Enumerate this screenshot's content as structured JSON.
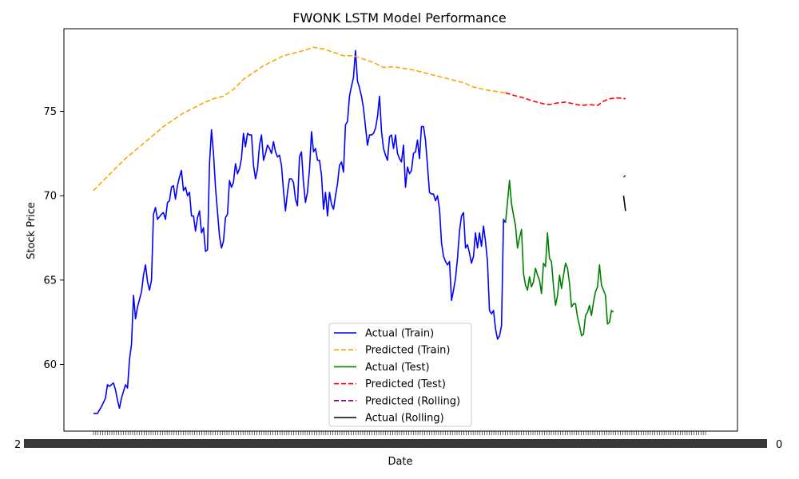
{
  "chart_data": {
    "type": "line",
    "title": "FWONK LSTM Model Performance",
    "xlabel": "Date",
    "ylabel": "Stock Price",
    "ylim": [
      56.5,
      79.7
    ],
    "y_ticks": [
      60,
      65,
      70,
      75
    ],
    "grid": false,
    "legend_position": "lower-center",
    "x_tick_note": "Dense overlapping date tick labels (illegible), starting with '2' and ending with '0'",
    "x_tick_label_start": "2",
    "x_tick_label_end": "0",
    "x_range": [
      0,
      306
    ],
    "series": [
      {
        "name": "Actual (Train)",
        "color": "#0000ff",
        "style": "solid",
        "points": [
          [
            0,
            57.1
          ],
          [
            2,
            57.1
          ],
          [
            4,
            57.5
          ],
          [
            6,
            58.0
          ],
          [
            7,
            58.8
          ],
          [
            8,
            58.7
          ],
          [
            10,
            58.9
          ],
          [
            11,
            58.5
          ],
          [
            12,
            57.9
          ],
          [
            13,
            57.4
          ],
          [
            14,
            58.0
          ],
          [
            16,
            58.8
          ],
          [
            17,
            58.6
          ],
          [
            18,
            60.3
          ],
          [
            19,
            61.2
          ],
          [
            20,
            64.1
          ],
          [
            21,
            62.7
          ],
          [
            22,
            63.4
          ],
          [
            24,
            64.3
          ],
          [
            25,
            65.3
          ],
          [
            26,
            65.9
          ],
          [
            27,
            64.9
          ],
          [
            28,
            64.4
          ],
          [
            29,
            65.0
          ],
          [
            30,
            68.9
          ],
          [
            31,
            69.3
          ],
          [
            32,
            68.6
          ],
          [
            34,
            68.9
          ],
          [
            35,
            69.0
          ],
          [
            36,
            68.6
          ],
          [
            37,
            69.6
          ],
          [
            38,
            69.7
          ],
          [
            39,
            70.5
          ],
          [
            40,
            70.6
          ],
          [
            41,
            69.8
          ],
          [
            42,
            70.6
          ],
          [
            43,
            71.1
          ],
          [
            44,
            71.5
          ],
          [
            45,
            70.3
          ],
          [
            46,
            70.5
          ],
          [
            47,
            70.0
          ],
          [
            48,
            70.2
          ],
          [
            49,
            68.8
          ],
          [
            50,
            68.8
          ],
          [
            51,
            67.9
          ],
          [
            52,
            68.7
          ],
          [
            53,
            69.1
          ],
          [
            54,
            67.8
          ],
          [
            55,
            68.1
          ],
          [
            56,
            66.7
          ],
          [
            57,
            66.8
          ],
          [
            58,
            71.9
          ],
          [
            59,
            73.9
          ],
          [
            60,
            72.5
          ],
          [
            61,
            70.5
          ],
          [
            63,
            67.6
          ],
          [
            64,
            66.9
          ],
          [
            65,
            67.3
          ],
          [
            66,
            68.7
          ],
          [
            67,
            68.9
          ],
          [
            68,
            70.9
          ],
          [
            69,
            70.5
          ],
          [
            70,
            70.8
          ],
          [
            71,
            71.9
          ],
          [
            72,
            71.3
          ],
          [
            73,
            71.6
          ],
          [
            74,
            72.2
          ],
          [
            75,
            73.7
          ],
          [
            76,
            72.9
          ],
          [
            77,
            73.7
          ],
          [
            78,
            73.6
          ],
          [
            79,
            73.6
          ],
          [
            80,
            71.8
          ],
          [
            81,
            71.0
          ],
          [
            82,
            71.6
          ],
          [
            83,
            73.0
          ],
          [
            84,
            73.6
          ],
          [
            85,
            72.1
          ],
          [
            86,
            72.5
          ],
          [
            87,
            73.0
          ],
          [
            88,
            72.8
          ],
          [
            89,
            72.5
          ],
          [
            90,
            73.2
          ],
          [
            91,
            72.6
          ],
          [
            92,
            72.3
          ],
          [
            93,
            72.4
          ],
          [
            94,
            71.8
          ],
          [
            95,
            70.3
          ],
          [
            96,
            69.1
          ],
          [
            97,
            70.2
          ],
          [
            98,
            71.0
          ],
          [
            99,
            71.0
          ],
          [
            100,
            70.8
          ],
          [
            101,
            69.8
          ],
          [
            102,
            69.4
          ],
          [
            103,
            72.3
          ],
          [
            104,
            72.6
          ],
          [
            105,
            70.8
          ],
          [
            106,
            69.6
          ],
          [
            107,
            70.2
          ],
          [
            108,
            71.6
          ],
          [
            109,
            73.8
          ],
          [
            110,
            72.6
          ],
          [
            111,
            72.8
          ],
          [
            112,
            72.1
          ],
          [
            113,
            72.1
          ],
          [
            114,
            71.2
          ],
          [
            115,
            69.2
          ],
          [
            116,
            70.2
          ],
          [
            117,
            68.8
          ],
          [
            118,
            70.2
          ],
          [
            119,
            69.5
          ],
          [
            120,
            69.2
          ],
          [
            121,
            70.0
          ],
          [
            122,
            70.7
          ],
          [
            123,
            71.8
          ],
          [
            124,
            72.0
          ],
          [
            125,
            71.4
          ],
          [
            126,
            74.2
          ],
          [
            127,
            74.4
          ],
          [
            128,
            75.9
          ],
          [
            129,
            76.5
          ],
          [
            130,
            77.0
          ],
          [
            131,
            78.6
          ],
          [
            132,
            76.8
          ],
          [
            133,
            76.4
          ],
          [
            134,
            75.9
          ],
          [
            135,
            75.2
          ],
          [
            136,
            74.1
          ],
          [
            137,
            73.0
          ],
          [
            138,
            73.6
          ],
          [
            139,
            73.6
          ],
          [
            140,
            73.7
          ],
          [
            141,
            74.0
          ],
          [
            142,
            74.7
          ],
          [
            143,
            75.9
          ],
          [
            144,
            73.8
          ],
          [
            145,
            72.8
          ],
          [
            146,
            72.4
          ],
          [
            147,
            72.1
          ],
          [
            148,
            73.5
          ],
          [
            149,
            73.6
          ],
          [
            150,
            72.8
          ],
          [
            151,
            73.6
          ],
          [
            152,
            72.5
          ],
          [
            153,
            72.2
          ],
          [
            154,
            72.0
          ],
          [
            155,
            73.0
          ],
          [
            156,
            70.5
          ],
          [
            157,
            71.7
          ],
          [
            158,
            71.3
          ],
          [
            159,
            71.5
          ],
          [
            160,
            72.5
          ],
          [
            161,
            72.6
          ],
          [
            162,
            73.3
          ],
          [
            163,
            72.2
          ],
          [
            164,
            74.1
          ],
          [
            165,
            74.1
          ],
          [
            166,
            73.3
          ],
          [
            167,
            71.8
          ],
          [
            168,
            70.2
          ],
          [
            169,
            70.1
          ],
          [
            170,
            70.1
          ],
          [
            171,
            69.7
          ],
          [
            172,
            70.0
          ],
          [
            173,
            69.2
          ],
          [
            174,
            67.2
          ],
          [
            175,
            66.4
          ],
          [
            176,
            66.1
          ],
          [
            177,
            65.9
          ],
          [
            178,
            66.1
          ],
          [
            179,
            63.8
          ],
          [
            180,
            64.4
          ],
          [
            181,
            65.1
          ],
          [
            182,
            66.3
          ],
          [
            183,
            67.9
          ],
          [
            184,
            68.8
          ],
          [
            185,
            69.0
          ],
          [
            186,
            66.9
          ],
          [
            187,
            67.1
          ],
          [
            188,
            66.6
          ],
          [
            189,
            66.0
          ],
          [
            190,
            66.4
          ],
          [
            191,
            67.8
          ],
          [
            192,
            66.9
          ],
          [
            193,
            67.8
          ],
          [
            194,
            67.0
          ],
          [
            195,
            68.2
          ],
          [
            196,
            67.3
          ],
          [
            197,
            66.1
          ],
          [
            198,
            63.2
          ],
          [
            199,
            63.0
          ],
          [
            200,
            63.2
          ],
          [
            201,
            62.1
          ],
          [
            202,
            61.5
          ],
          [
            203,
            61.7
          ],
          [
            204,
            62.3
          ],
          [
            205,
            68.6
          ],
          [
            206,
            68.4
          ]
        ]
      },
      {
        "name": "Predicted (Train)",
        "color": "#ffa500",
        "style": "dashed",
        "points": [
          [
            0,
            70.3
          ],
          [
            5,
            70.9
          ],
          [
            10,
            71.5
          ],
          [
            15,
            72.1
          ],
          [
            20,
            72.6
          ],
          [
            25,
            73.1
          ],
          [
            30,
            73.6
          ],
          [
            35,
            74.1
          ],
          [
            40,
            74.5
          ],
          [
            45,
            74.9
          ],
          [
            50,
            75.2
          ],
          [
            55,
            75.5
          ],
          [
            60,
            75.75
          ],
          [
            65,
            75.9
          ],
          [
            70,
            76.3
          ],
          [
            75,
            76.9
          ],
          [
            80,
            77.3
          ],
          [
            85,
            77.7
          ],
          [
            90,
            78.0
          ],
          [
            95,
            78.3
          ],
          [
            100,
            78.45
          ],
          [
            105,
            78.6
          ],
          [
            110,
            78.8
          ],
          [
            115,
            78.7
          ],
          [
            120,
            78.5
          ],
          [
            125,
            78.3
          ],
          [
            130,
            78.3
          ],
          [
            135,
            78.1
          ],
          [
            140,
            77.9
          ],
          [
            145,
            77.6
          ],
          [
            150,
            77.65
          ],
          [
            155,
            77.55
          ],
          [
            160,
            77.45
          ],
          [
            165,
            77.3
          ],
          [
            170,
            77.15
          ],
          [
            175,
            77.0
          ],
          [
            180,
            76.85
          ],
          [
            185,
            76.7
          ],
          [
            190,
            76.45
          ],
          [
            195,
            76.3
          ],
          [
            200,
            76.2
          ],
          [
            206,
            76.1
          ]
        ]
      },
      {
        "name": "Actual (Test)",
        "color": "#008000",
        "style": "solid",
        "points": [
          [
            206,
            68.4
          ],
          [
            208,
            70.9
          ],
          [
            209,
            69.5
          ],
          [
            211,
            68.2
          ],
          [
            212,
            66.9
          ],
          [
            213,
            67.5
          ],
          [
            214,
            68.0
          ],
          [
            215,
            65.4
          ],
          [
            216,
            64.7
          ],
          [
            217,
            64.4
          ],
          [
            218,
            65.2
          ],
          [
            219,
            64.6
          ],
          [
            220,
            64.9
          ],
          [
            221,
            65.7
          ],
          [
            222,
            65.3
          ],
          [
            223,
            65.0
          ],
          [
            224,
            64.2
          ],
          [
            225,
            66.0
          ],
          [
            226,
            65.8
          ],
          [
            227,
            67.8
          ],
          [
            228,
            66.3
          ],
          [
            229,
            66.1
          ],
          [
            230,
            64.6
          ],
          [
            231,
            63.5
          ],
          [
            232,
            64.1
          ],
          [
            233,
            65.3
          ],
          [
            234,
            64.5
          ],
          [
            235,
            65.3
          ],
          [
            236,
            66.0
          ],
          [
            237,
            65.7
          ],
          [
            238,
            64.8
          ],
          [
            239,
            63.4
          ],
          [
            240,
            63.6
          ],
          [
            241,
            63.6
          ],
          [
            242,
            62.8
          ],
          [
            243,
            62.3
          ],
          [
            244,
            61.7
          ],
          [
            245,
            61.8
          ],
          [
            246,
            62.9
          ],
          [
            247,
            63.1
          ],
          [
            248,
            63.5
          ],
          [
            249,
            62.9
          ],
          [
            250,
            63.7
          ],
          [
            251,
            64.3
          ],
          [
            252,
            64.6
          ],
          [
            253,
            65.9
          ],
          [
            254,
            64.7
          ],
          [
            255,
            64.4
          ],
          [
            256,
            64.1
          ],
          [
            257,
            62.4
          ],
          [
            258,
            62.5
          ],
          [
            259,
            63.2
          ],
          [
            260,
            63.1
          ]
        ]
      },
      {
        "name": "Predicted (Test)",
        "color": "#ff0000",
        "style": "dashed",
        "points": [
          [
            206,
            76.1
          ],
          [
            210,
            75.95
          ],
          [
            215,
            75.8
          ],
          [
            220,
            75.6
          ],
          [
            225,
            75.45
          ],
          [
            228,
            75.4
          ],
          [
            232,
            75.5
          ],
          [
            236,
            75.55
          ],
          [
            240,
            75.45
          ],
          [
            244,
            75.35
          ],
          [
            248,
            75.4
          ],
          [
            252,
            75.35
          ],
          [
            255,
            75.6
          ],
          [
            258,
            75.75
          ],
          [
            262,
            75.8
          ],
          [
            266,
            75.75
          ]
        ]
      },
      {
        "name": "Predicted (Rolling)",
        "color": "#800080",
        "style": "dashed",
        "points": [
          [
            265,
            71.1
          ],
          [
            266,
            71.2
          ]
        ]
      },
      {
        "name": "Actual (Rolling)",
        "color": "#000000",
        "style": "solid",
        "points": [
          [
            265,
            70.0
          ],
          [
            266,
            69.1
          ]
        ]
      }
    ]
  }
}
